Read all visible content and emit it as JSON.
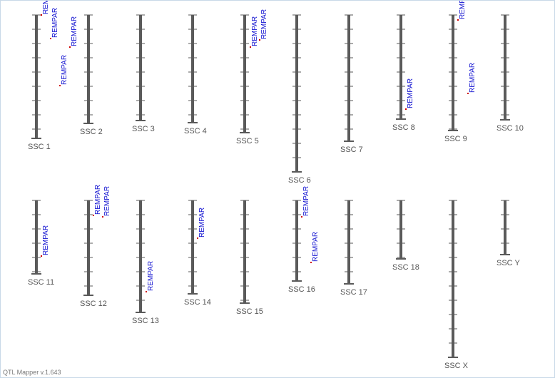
{
  "chromosomes": [
    {
      "label": "SSC 1",
      "qtls": [
        {
          "label": "REMPAR"
        },
        {
          "label": "REMPAR"
        },
        {
          "label": "REMPAR"
        },
        {
          "label": "REMPAR"
        }
      ]
    },
    {
      "label": "SSC 2",
      "qtls": []
    },
    {
      "label": "SSC 3",
      "qtls": []
    },
    {
      "label": "SSC 4",
      "qtls": []
    },
    {
      "label": "SSC 5",
      "qtls": [
        {
          "label": "REMPAR"
        },
        {
          "label": "REMPAR"
        }
      ]
    },
    {
      "label": "SSC 6",
      "qtls": []
    },
    {
      "label": "SSC 7",
      "qtls": []
    },
    {
      "label": "SSC 8",
      "qtls": [
        {
          "label": "REMPAR"
        }
      ]
    },
    {
      "label": "SSC 9",
      "qtls": [
        {
          "label": "REMPAR"
        },
        {
          "label": "REMPAR"
        }
      ]
    },
    {
      "label": "SSC 10",
      "qtls": []
    },
    {
      "label": "SSC 11",
      "qtls": [
        {
          "label": "REMPAR"
        }
      ]
    },
    {
      "label": "SSC 12",
      "qtls": [
        {
          "label": "REMPAR"
        },
        {
          "label": "REMPAR"
        }
      ]
    },
    {
      "label": "SSC 13",
      "qtls": [
        {
          "label": "REMPAR"
        }
      ]
    },
    {
      "label": "SSC 14",
      "qtls": [
        {
          "label": "REMPAR"
        }
      ]
    },
    {
      "label": "SSC 15",
      "qtls": []
    },
    {
      "label": "SSC 16",
      "qtls": [
        {
          "label": "REMPAR"
        },
        {
          "label": "REMPAR"
        }
      ]
    },
    {
      "label": "SSC 17",
      "qtls": []
    },
    {
      "label": "SSC 18",
      "qtls": []
    },
    {
      "label": "SSC X",
      "qtls": []
    },
    {
      "label": "SSC Y",
      "qtls": []
    }
  ],
  "footer": "QTL Mapper v.1.643"
}
